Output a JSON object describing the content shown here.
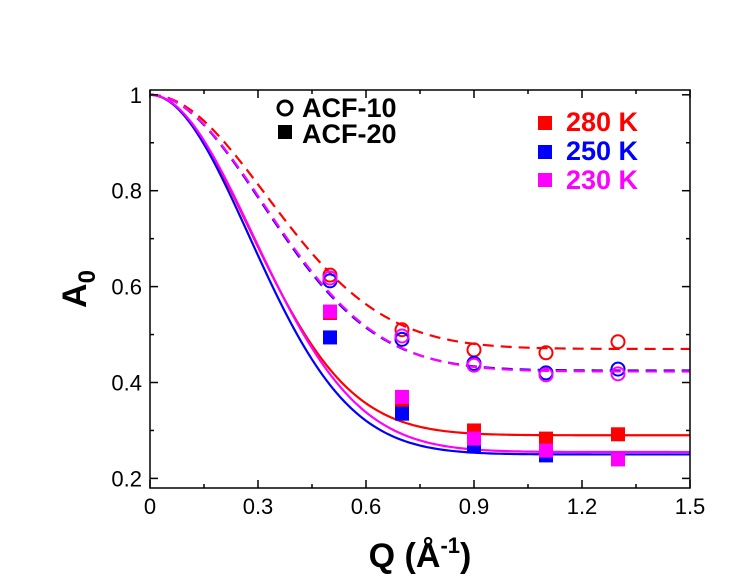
{
  "chart_data": {
    "type": "scatter",
    "xlabel": "Q (Å⁻¹)",
    "xlabel_main": "Q (Å",
    "xlabel_sup": "-1",
    "xlabel_close": ")",
    "ylabel": "A₀",
    "ylabel_main": "A",
    "ylabel_sub": "0",
    "xlim": [
      0,
      1.5
    ],
    "ylim": [
      0.18,
      1.01
    ],
    "xticks": [
      0,
      0.3,
      0.6,
      0.9,
      1.2,
      1.5
    ],
    "xtick_labels": [
      "0",
      "0.3",
      "0.6",
      "0.9",
      "1.2",
      "1.5"
    ],
    "yticks": [
      0.2,
      0.4,
      0.6,
      0.8,
      1.0
    ],
    "ytick_labels": [
      "0.2",
      "0.4",
      "0.6",
      "0.8",
      "1"
    ],
    "sample_legend": [
      {
        "label": "ACF-10",
        "marker": "circle-open"
      },
      {
        "label": "ACF-20",
        "marker": "square-filled"
      }
    ],
    "temperature_legend": [
      {
        "label": "280 K",
        "color": "#ff0000"
      },
      {
        "label": "250 K",
        "color": "#0000ff"
      },
      {
        "label": "230 K",
        "color": "#ff00ff"
      }
    ],
    "series": [
      {
        "name": "ACF-10 280 K",
        "marker": "circle-open",
        "line": "dashed",
        "color": "#ff0000",
        "x": [
          0.5,
          0.7,
          0.9,
          1.1,
          1.3
        ],
        "y": [
          0.624,
          0.51,
          0.468,
          0.462,
          0.485
        ],
        "fit": {
          "plateau": 0.47,
          "sigma": 0.455
        }
      },
      {
        "name": "ACF-10 250 K",
        "marker": "circle-open",
        "line": "dashed",
        "color": "#0000ff",
        "x": [
          0.5,
          0.7,
          0.9,
          1.1,
          1.3
        ],
        "y": [
          0.612,
          0.49,
          0.44,
          0.42,
          0.428
        ],
        "fit": {
          "plateau": 0.425,
          "sigma": 0.44
        }
      },
      {
        "name": "ACF-10 230 K",
        "marker": "circle-open",
        "line": "dashed",
        "color": "#ff00ff",
        "x": [
          0.5,
          0.7,
          0.9,
          1.1,
          1.3
        ],
        "y": [
          0.618,
          0.497,
          0.436,
          0.416,
          0.418
        ],
        "fit": {
          "plateau": 0.423,
          "sigma": 0.445
        }
      },
      {
        "name": "ACF-20 280 K",
        "marker": "square-filled",
        "line": "solid",
        "color": "#ff0000",
        "x": [
          0.5,
          0.7,
          0.9,
          1.1,
          1.3
        ],
        "y": [
          0.545,
          0.36,
          0.3,
          0.283,
          0.292
        ],
        "fit": {
          "plateau": 0.29,
          "sigma": 0.39
        }
      },
      {
        "name": "ACF-20 250 K",
        "marker": "square-filled",
        "line": "solid",
        "color": "#0000ff",
        "x": [
          0.5,
          0.7,
          0.9,
          1.1,
          1.3
        ],
        "y": [
          0.494,
          0.335,
          0.267,
          0.248,
          0.24
        ],
        "fit": {
          "plateau": 0.25,
          "sigma": 0.39
        }
      },
      {
        "name": "ACF-20 230 K",
        "marker": "square-filled",
        "line": "solid",
        "color": "#ff00ff",
        "x": [
          0.5,
          0.7,
          0.9,
          1.1,
          1.3
        ],
        "y": [
          0.548,
          0.37,
          0.283,
          0.258,
          0.24
        ],
        "fit": {
          "plateau": 0.255,
          "sigma": 0.405
        }
      }
    ]
  }
}
